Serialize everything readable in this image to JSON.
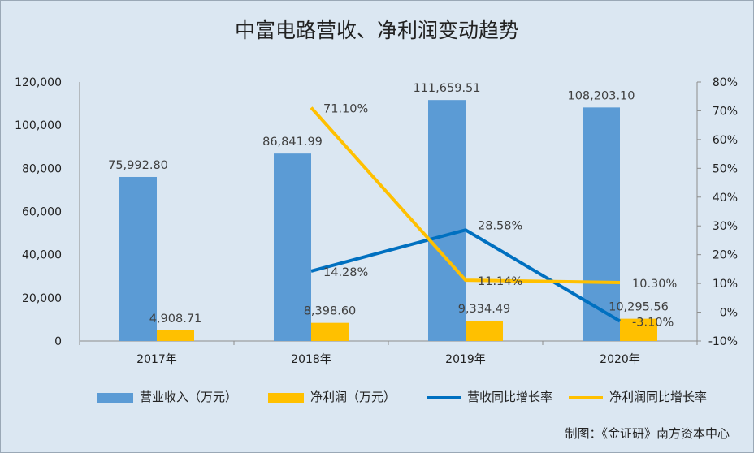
{
  "title": "中富电路营收、净利润变动趋势",
  "credit": "制图：《金证研》南方资本中心",
  "chart_data": {
    "type": "bar+line",
    "title": "中富电路营收、净利润变动趋势",
    "categories": [
      "2017年",
      "2018年",
      "2019年",
      "2020年"
    ],
    "y_left": {
      "min": 0,
      "max": 120000,
      "ticks": [
        "0",
        "20,000",
        "40,000",
        "60,000",
        "80,000",
        "100,000",
        "120,000"
      ]
    },
    "y_right": {
      "min": -10,
      "max": 80,
      "ticks": [
        "-10%",
        "0%",
        "10%",
        "20%",
        "30%",
        "40%",
        "50%",
        "60%",
        "70%",
        "80%"
      ]
    },
    "series": [
      {
        "name": "营业收入（万元）",
        "type": "bar",
        "axis": "left",
        "color": "#5b9bd5",
        "values": [
          75992.8,
          86841.99,
          111659.51,
          108203.1
        ],
        "labels": [
          "75,992.80",
          "86,841.99",
          "111,659.51",
          "108,203.10"
        ]
      },
      {
        "name": "净利润（万元）",
        "type": "bar",
        "axis": "left",
        "color": "#ffc000",
        "values": [
          4908.71,
          8398.6,
          9334.49,
          10295.56
        ],
        "labels": [
          "4,908.71",
          "8,398.60",
          "9,334.49",
          "10,295.56"
        ]
      },
      {
        "name": "营收同比增长率",
        "type": "line",
        "axis": "right",
        "color": "#0070c0",
        "values": [
          null,
          14.28,
          28.58,
          -3.1
        ],
        "labels": [
          "",
          "14.28%",
          "28.58%",
          "-3.10%"
        ]
      },
      {
        "name": "净利润同比增长率",
        "type": "line",
        "axis": "right",
        "color": "#ffc000",
        "values": [
          null,
          71.1,
          11.14,
          10.3
        ],
        "labels": [
          "",
          "71.10%",
          "11.14%",
          "10.30%"
        ]
      }
    ],
    "grid": false,
    "legend": "bottom"
  }
}
